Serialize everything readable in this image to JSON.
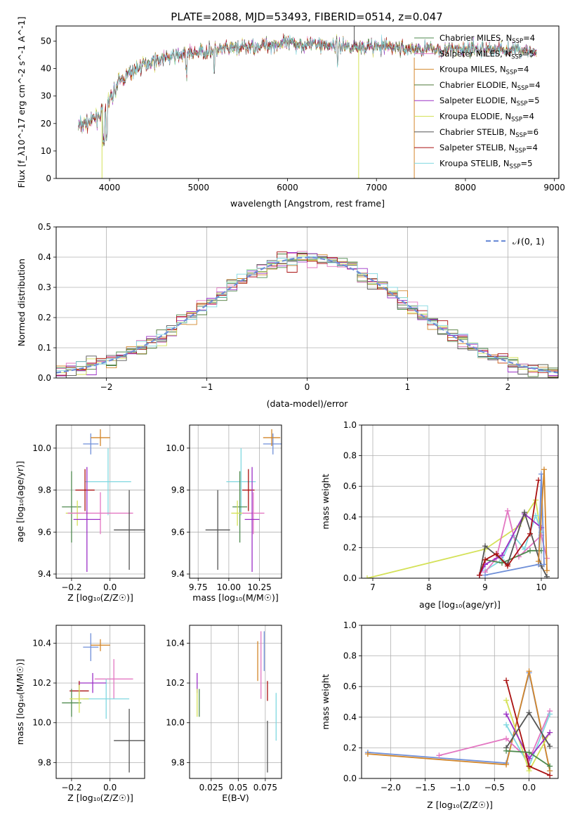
{
  "title": "PLATE=2088, MJD=53493, FIBERID=0514, z=0.047",
  "models": [
    {
      "name": "Chabrier MILES",
      "n": "4",
      "color": "#4f8a4f"
    },
    {
      "name": "Salpeter MILES",
      "n": "5",
      "color": "#e377c2"
    },
    {
      "name": "Kroupa MILES",
      "n": "4",
      "color": "#d2862a"
    },
    {
      "name": "Chabrier ELODIE",
      "n": "4",
      "color": "#4f7a3a"
    },
    {
      "name": "Salpeter ELODIE",
      "n": "5",
      "color": "#9b30c6"
    },
    {
      "name": "Kroupa ELODIE",
      "n": "4",
      "color": "#d4e157"
    },
    {
      "name": "Chabrier STELIB",
      "n": "6",
      "color": "#555555"
    },
    {
      "name": "Salpeter STELIB",
      "n": "4",
      "color": "#aa1111"
    },
    {
      "name": "Kroupa STELIB",
      "n": "5",
      "color": "#80d8e0"
    }
  ],
  "legend_nssp_sub": "SSP",
  "chart_data": [
    {
      "id": "spectrum",
      "type": "line",
      "xlabel": "wavelength [Angstrom, rest frame]",
      "ylabel": "Flux [f_λ10^-17 erg cm^-2 s^-1 A^-1]",
      "xlim": [
        3400,
        9050
      ],
      "ylim": [
        0,
        55.5
      ],
      "xticks": [
        4000,
        5000,
        6000,
        7000,
        8000,
        9000
      ],
      "yticks": [
        0,
        10,
        20,
        30,
        40,
        50
      ],
      "continuum": [
        [
          3650,
          19
        ],
        [
          3800,
          21
        ],
        [
          3950,
          25
        ],
        [
          4100,
          35
        ],
        [
          4300,
          40
        ],
        [
          4500,
          43
        ],
        [
          4800,
          45
        ],
        [
          5000,
          46
        ],
        [
          5300,
          47
        ],
        [
          5600,
          48
        ],
        [
          5900,
          49
        ],
        [
          6200,
          49
        ],
        [
          6500,
          48.5
        ],
        [
          6800,
          48
        ],
        [
          7100,
          48
        ],
        [
          7400,
          47
        ],
        [
          7700,
          47
        ],
        [
          8000,
          47
        ],
        [
          8300,
          47
        ],
        [
          8600,
          47
        ],
        [
          8800,
          46
        ]
      ],
      "legend_loc": "right"
    },
    {
      "id": "residuals",
      "type": "step",
      "xlabel": "(data-model)/error",
      "ylabel": "Normed distribution",
      "xlim": [
        -2.5,
        2.5
      ],
      "ylim": [
        0,
        0.5
      ],
      "xticks": [
        -2,
        -1,
        0,
        1,
        2
      ],
      "yticks": [
        0.0,
        0.1,
        0.2,
        0.3,
        0.4,
        0.5
      ],
      "reference_label": "𝒩(0, 1)",
      "reference_color": "#6f8fd8",
      "legend_loc": "upper right"
    },
    {
      "id": "z-age",
      "type": "errorbar",
      "xlabel": "Z [log₁₀(Z/Z☉)]",
      "ylabel": "age  [log₁₀(age/yr)]",
      "xlim": [
        -0.28,
        0.18
      ],
      "ylim": [
        9.38,
        10.11
      ],
      "xticks": [
        -0.2,
        0.0
      ],
      "yticks": [
        9.4,
        9.6,
        9.8,
        10.0
      ],
      "points": [
        {
          "x": -0.1,
          "xerr": 0.04,
          "y": 10.02,
          "yerr": 0.05,
          "color": "#6f8fd8"
        },
        {
          "x": -0.05,
          "xerr": 0.05,
          "y": 10.05,
          "yerr": 0.04,
          "color": "#d2862a"
        },
        {
          "x": -0.01,
          "xerr": 0.12,
          "y": 9.84,
          "yerr": 0.16,
          "color": "#80d8e0"
        },
        {
          "x": -0.13,
          "xerr": 0.05,
          "y": 9.8,
          "yerr": 0.1,
          "color": "#aa1111"
        },
        {
          "x": -0.2,
          "xerr": 0.05,
          "y": 9.72,
          "yerr": 0.17,
          "color": "#4f8a4f"
        },
        {
          "x": -0.17,
          "xerr": 0.06,
          "y": 9.69,
          "yerr": 0.06,
          "color": "#d4e157"
        },
        {
          "x": -0.05,
          "xerr": 0.17,
          "y": 9.69,
          "yerr": 0.1,
          "color": "#e377c2"
        },
        {
          "x": -0.12,
          "xerr": 0.07,
          "y": 9.66,
          "yerr": 0.25,
          "color": "#9b30c6"
        },
        {
          "x": 0.1,
          "xerr": 0.08,
          "y": 9.61,
          "yerr": 0.19,
          "color": "#555555"
        }
      ]
    },
    {
      "id": "mass-age",
      "type": "errorbar",
      "xlabel": "mass [log₁₀(M/M☉)]",
      "ylabel": "",
      "xlim": [
        9.68,
        10.43
      ],
      "ylim": [
        9.38,
        10.11
      ],
      "xticks": [
        9.75,
        10.0,
        10.25
      ],
      "yticks": [
        9.4,
        9.6,
        9.8,
        10.0
      ],
      "points": [
        {
          "x": 10.36,
          "xerr": 0.08,
          "y": 10.02,
          "yerr": 0.05,
          "color": "#6f8fd8"
        },
        {
          "x": 10.35,
          "xerr": 0.07,
          "y": 10.05,
          "yerr": 0.04,
          "color": "#d2862a"
        },
        {
          "x": 10.1,
          "xerr": 0.12,
          "y": 9.84,
          "yerr": 0.16,
          "color": "#80d8e0"
        },
        {
          "x": 10.16,
          "xerr": 0.05,
          "y": 9.8,
          "yerr": 0.1,
          "color": "#aa1111"
        },
        {
          "x": 10.09,
          "xerr": 0.06,
          "y": 9.72,
          "yerr": 0.17,
          "color": "#4f8a4f"
        },
        {
          "x": 10.07,
          "xerr": 0.05,
          "y": 9.69,
          "yerr": 0.06,
          "color": "#d4e157"
        },
        {
          "x": 10.2,
          "xerr": 0.09,
          "y": 9.69,
          "yerr": 0.1,
          "color": "#e377c2"
        },
        {
          "x": 10.19,
          "xerr": 0.06,
          "y": 9.66,
          "yerr": 0.25,
          "color": "#9b30c6"
        },
        {
          "x": 9.91,
          "xerr": 0.1,
          "y": 9.61,
          "yerr": 0.19,
          "color": "#555555"
        }
      ]
    },
    {
      "id": "age-weight",
      "type": "line",
      "xlabel": "age  [log₁₀(age/yr)]",
      "ylabel": "mass weight",
      "xlim": [
        6.8,
        10.3
      ],
      "ylim": [
        0,
        1.0
      ],
      "xticks": [
        7,
        8,
        9,
        10
      ],
      "yticks": [
        0.0,
        0.2,
        0.4,
        0.6,
        0.8,
        1.0
      ],
      "series": [
        {
          "color": "#d4e157",
          "x": [
            6.9,
            9.0,
            9.6,
            9.9,
            10.0
          ],
          "y": [
            0.0,
            0.19,
            0.34,
            0.51,
            0.28
          ]
        },
        {
          "color": "#80d8e0",
          "x": [
            9.0,
            9.3,
            9.5,
            9.7,
            9.9,
            10.0
          ],
          "y": [
            0.05,
            0.12,
            0.28,
            0.19,
            0.41,
            0.3
          ]
        },
        {
          "color": "#e377c2",
          "x": [
            9.0,
            9.2,
            9.4,
            9.6,
            10.0,
            10.1
          ],
          "y": [
            0.04,
            0.13,
            0.44,
            0.14,
            0.28,
            0.13
          ]
        },
        {
          "color": "#9b30c6",
          "x": [
            8.9,
            9.0,
            9.3,
            9.7,
            10.0
          ],
          "y": [
            0.02,
            0.09,
            0.15,
            0.42,
            0.33
          ]
        },
        {
          "color": "#4f8a4f",
          "x": [
            9.0,
            9.3,
            9.8,
            10.0
          ],
          "y": [
            0.12,
            0.1,
            0.18,
            0.18
          ]
        },
        {
          "color": "#555555",
          "x": [
            8.9,
            9.0,
            9.4,
            9.7,
            10.0,
            10.1
          ],
          "y": [
            0.02,
            0.21,
            0.09,
            0.43,
            0.08,
            0.01
          ]
        },
        {
          "color": "#aa1111",
          "x": [
            8.9,
            9.0,
            9.2,
            9.4,
            9.8,
            9.95
          ],
          "y": [
            0.02,
            0.12,
            0.16,
            0.08,
            0.29,
            0.64
          ]
        },
        {
          "color": "#6f8fd8",
          "x": [
            9.0,
            9.95,
            10.0,
            10.05
          ],
          "y": [
            0.02,
            0.09,
            0.68,
            0.09
          ]
        },
        {
          "color": "#d2862a",
          "x": [
            9.95,
            10.05,
            10.1
          ],
          "y": [
            0.11,
            0.71,
            0.05
          ]
        }
      ]
    },
    {
      "id": "z-mass",
      "type": "errorbar",
      "xlabel": "Z [log₁₀(Z/Z☉)]",
      "ylabel": "mass [log₁₀(M/M☉)]",
      "xlim": [
        -0.28,
        0.18
      ],
      "ylim": [
        9.72,
        10.49
      ],
      "xticks": [
        -0.2,
        0.0
      ],
      "yticks": [
        9.8,
        10.0,
        10.2,
        10.4
      ],
      "points": [
        {
          "x": -0.1,
          "xerr": 0.04,
          "y": 10.38,
          "yerr": 0.07,
          "color": "#6f8fd8"
        },
        {
          "x": -0.05,
          "xerr": 0.05,
          "y": 10.39,
          "yerr": 0.03,
          "color": "#d2862a"
        },
        {
          "x": 0.02,
          "xerr": 0.1,
          "y": 10.22,
          "yerr": 0.1,
          "color": "#e377c2"
        },
        {
          "x": -0.02,
          "xerr": 0.12,
          "y": 10.12,
          "yerr": 0.1,
          "color": "#80d8e0"
        },
        {
          "x": -0.16,
          "xerr": 0.05,
          "y": 10.16,
          "yerr": 0.05,
          "color": "#aa1111"
        },
        {
          "x": -0.09,
          "xerr": 0.07,
          "y": 10.2,
          "yerr": 0.05,
          "color": "#9b30c6"
        },
        {
          "x": -0.2,
          "xerr": 0.05,
          "y": 10.1,
          "yerr": 0.07,
          "color": "#4f8a4f"
        },
        {
          "x": -0.16,
          "xerr": 0.05,
          "y": 10.12,
          "yerr": 0.07,
          "color": "#d4e157"
        },
        {
          "x": 0.1,
          "xerr": 0.08,
          "y": 9.91,
          "yerr": 0.16,
          "color": "#555555"
        }
      ]
    },
    {
      "id": "ebv-mass",
      "type": "errorbar",
      "xlabel": "E(B-V)",
      "ylabel": "",
      "xlim": [
        0.005,
        0.09
      ],
      "ylim": [
        9.72,
        10.49
      ],
      "xticks": [
        0.025,
        0.05,
        0.075
      ],
      "yticks": [
        9.8,
        10.0,
        10.2,
        10.4
      ],
      "points": [
        {
          "x": 0.068,
          "y": 10.31,
          "yerr": 0.1,
          "color": "#d2862a"
        },
        {
          "x": 0.071,
          "y": 10.29,
          "yerr": 0.17,
          "color": "#e377c2"
        },
        {
          "x": 0.074,
          "y": 10.36,
          "yerr": 0.1,
          "color": "#6f8fd8"
        },
        {
          "x": 0.077,
          "y": 10.16,
          "yerr": 0.05,
          "color": "#aa1111"
        },
        {
          "x": 0.012,
          "y": 10.2,
          "yerr": 0.05,
          "color": "#9b30c6"
        },
        {
          "x": 0.012,
          "y": 10.1,
          "yerr": 0.07,
          "color": "#d4e157"
        },
        {
          "x": 0.014,
          "y": 10.1,
          "yerr": 0.07,
          "color": "#4f8a4f"
        },
        {
          "x": 0.077,
          "y": 9.88,
          "yerr": 0.13,
          "color": "#555555"
        },
        {
          "x": 0.085,
          "y": 10.03,
          "yerr": 0.12,
          "color": "#80d8e0"
        }
      ]
    },
    {
      "id": "z-weight",
      "type": "line",
      "xlabel": "Z [log₁₀(Z/Z☉)]",
      "ylabel": "mass weight",
      "xlim": [
        -2.42,
        0.42
      ],
      "ylim": [
        0,
        1.0
      ],
      "xticks": [
        -2.0,
        -1.5,
        -1.0,
        -0.5,
        0.0
      ],
      "yticks": [
        0.0,
        0.2,
        0.4,
        0.6,
        0.8,
        1.0
      ],
      "series": [
        {
          "color": "#6f8fd8",
          "x": [
            -2.33,
            -0.33,
            0.0,
            0.3
          ],
          "y": [
            0.17,
            0.1,
            0.69,
            0.05
          ]
        },
        {
          "color": "#d2862a",
          "x": [
            -2.33,
            -0.33,
            0.0,
            0.3
          ],
          "y": [
            0.16,
            0.09,
            0.7,
            0.05
          ]
        },
        {
          "color": "#e377c2",
          "x": [
            -1.3,
            -0.33,
            0.0,
            0.3
          ],
          "y": [
            0.15,
            0.26,
            0.12,
            0.44
          ]
        },
        {
          "color": "#80d8e0",
          "x": [
            -0.33,
            0.0,
            0.3
          ],
          "y": [
            0.35,
            0.08,
            0.42
          ]
        },
        {
          "color": "#d4e157",
          "x": [
            -0.33,
            0.0,
            0.3
          ],
          "y": [
            0.51,
            0.05,
            0.3
          ]
        },
        {
          "color": "#9b30c6",
          "x": [
            -0.33,
            0.0,
            0.3
          ],
          "y": [
            0.42,
            0.13,
            0.3
          ]
        },
        {
          "color": "#aa1111",
          "x": [
            -0.33,
            0.0,
            0.3
          ],
          "y": [
            0.64,
            0.08,
            0.02
          ]
        },
        {
          "color": "#555555",
          "x": [
            -0.33,
            0.0,
            0.3
          ],
          "y": [
            0.2,
            0.43,
            0.21
          ]
        },
        {
          "color": "#4f8a4f",
          "x": [
            -0.33,
            0.0,
            0.3
          ],
          "y": [
            0.18,
            0.17,
            0.08
          ]
        }
      ]
    }
  ]
}
